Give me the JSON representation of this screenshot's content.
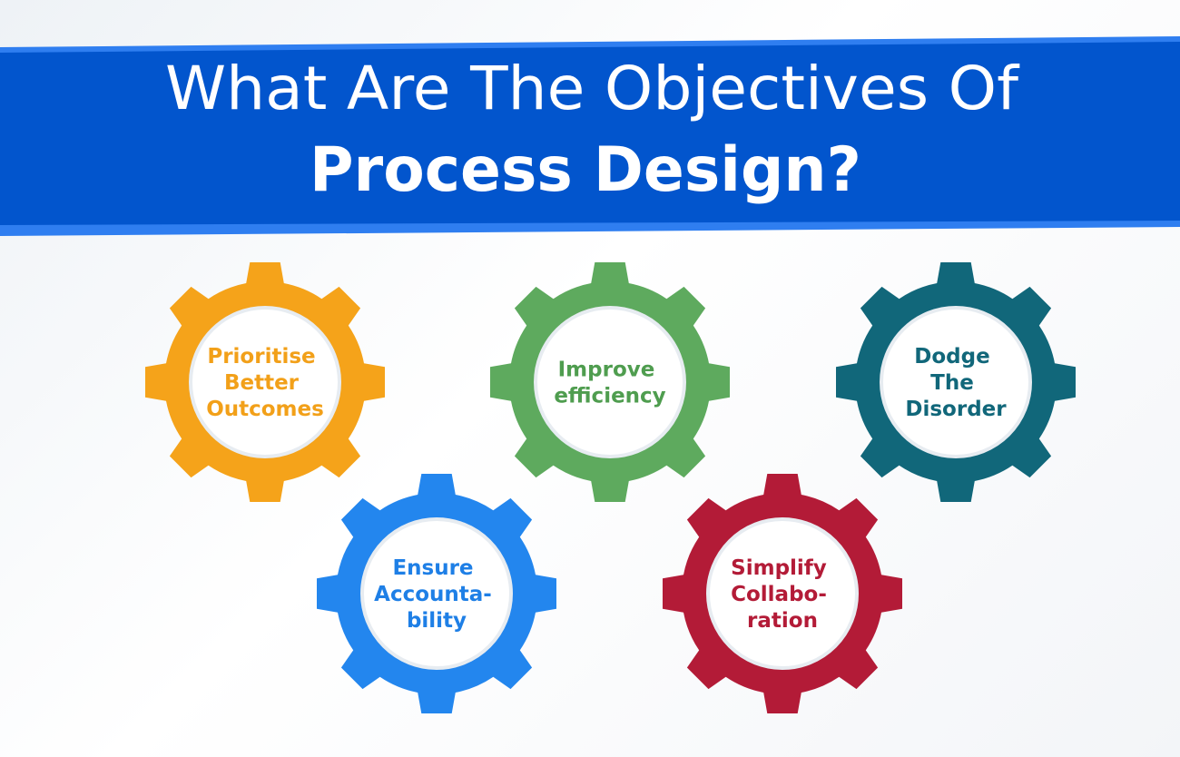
{
  "header": {
    "title_line_1": "What Are The Objectives Of",
    "title_line_2": "Process Design?"
  },
  "colors": {
    "banner": "#0255cd",
    "banner_edge": "#2f7ef0",
    "background": "#f3f5f8"
  },
  "objectives": [
    {
      "id": "prioritise-better-outcomes",
      "lines": [
        "Prioritise",
        "Better",
        "Outcomes"
      ],
      "color": "#f5a31a",
      "text_color": "#f2a019",
      "icon": "gear-icon"
    },
    {
      "id": "improve-efficiency",
      "lines": [
        "Improve",
        "efficiency"
      ],
      "color": "#5eaa5e",
      "text_color": "#4f9d4f",
      "icon": "gear-icon"
    },
    {
      "id": "dodge-the-disorder",
      "lines": [
        "Dodge",
        "The",
        "Disorder"
      ],
      "color": "#11677a",
      "text_color": "#11677a",
      "icon": "gear-icon"
    },
    {
      "id": "ensure-accountability",
      "lines": [
        "Ensure",
        "Accounta-",
        "bility"
      ],
      "color": "#2386ee",
      "text_color": "#1e7fe6",
      "icon": "gear-icon"
    },
    {
      "id": "simplify-collaboration",
      "lines": [
        "Simplify",
        "Collabo-",
        "ration"
      ],
      "color": "#b31b37",
      "text_color": "#b31b37",
      "icon": "gear-icon"
    }
  ]
}
